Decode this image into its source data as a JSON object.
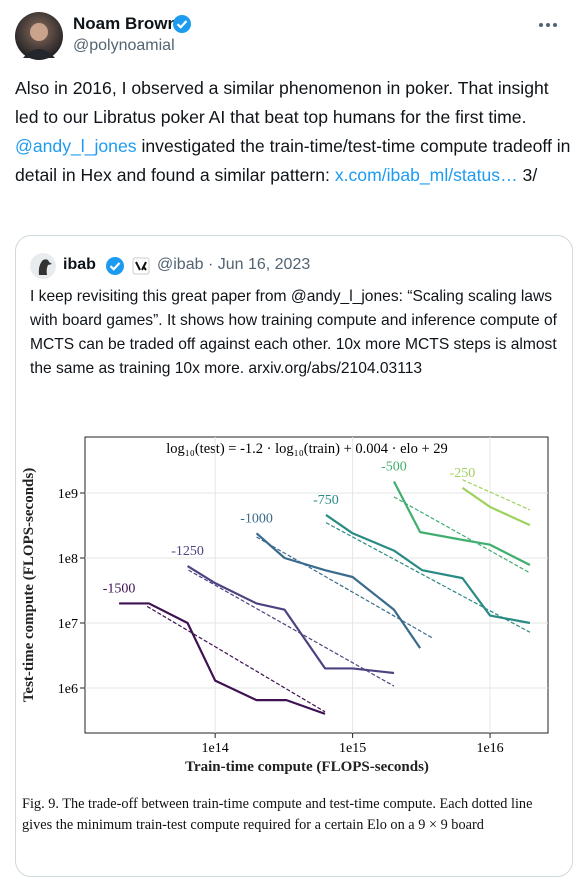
{
  "tweet": {
    "name": "Noam Brown",
    "handle": "@polynoamial",
    "text": [
      "Also in 2016, I observed a similar phenomenon in poker. That insight led to our Libratus poker AI that beat top humans for the first time. ",
      "@andy_l_jones",
      " investigated the train-time/test-time compute tradeoff in detail in Hex and found a similar pattern: ",
      "x.com/ibab_ml/status…",
      " 3/"
    ]
  },
  "quote": {
    "name": "ibab",
    "meta": "@ibab · Jun 16, 2023",
    "text": "I keep revisiting this great paper from @andy_l_jones: “Scaling scaling laws with board games”. It shows how training compute and inference compute of MCTS can be traded off against each other. 10x more MCTS steps is almost the same as training 10x more. arxiv.org/abs/2104.03113"
  },
  "chart_data": {
    "type": "line",
    "annotation": "log₁₀(test) = -1.2 · log₁₀(train) + 0.004 · elo + 29",
    "x_label": "Train-time compute (FLOPS-seconds)",
    "y_label": "Test-time compute (FLOPS-seconds)",
    "caption": "Fig. 9.  The trade-off between train-time compute and test-time compute. Each dotted line gives the minimum train-test compute required for a certain Elo on a 9 × 9 board",
    "log_scale": {
      "x": true,
      "y": true
    },
    "xlim": [
      11300000000000.0,
      2.64e+16
    ],
    "ylim": [
      203000.0,
      7270000000.0
    ],
    "xticks": [
      {
        "value": 100000000000000.0,
        "label": "1e14"
      },
      {
        "value": 1000000000000000.0,
        "label": "1e15"
      },
      {
        "value": 1e+16,
        "label": "1e16"
      }
    ],
    "yticks": [
      {
        "value": 1000000.0,
        "label": "1e6"
      },
      {
        "value": 10000000.0,
        "label": "1e7"
      },
      {
        "value": 100000000.0,
        "label": "1e8"
      },
      {
        "value": 1000000000.0,
        "label": "1e9"
      }
    ],
    "series": [
      {
        "name": "-1500",
        "color": "#3d1152",
        "x": [
          20000000000000.0,
          33000000000000.0,
          63000000000000.0,
          100000000000000.0,
          200000000000000.0,
          330000000000000.0,
          630000000000000.0
        ],
        "values": [
          20000000.0,
          20000000.0,
          10000000.0,
          1300000.0,
          650000.0,
          650000.0,
          400000.0
        ],
        "dashed": {
          "x": [
            32000000000000.0,
            630000000000000.0
          ],
          "values": [
            18000000.0,
            430000.0
          ]
        }
      },
      {
        "name": "-1250",
        "color": "#4c4480",
        "x": [
          63000000000000.0,
          100000000000000.0,
          200000000000000.0,
          320000000000000.0,
          630000000000000.0,
          1000000000000000.0,
          2000000000000000.0
        ],
        "values": [
          75000000.0,
          41000000.0,
          20000000.0,
          16000000.0,
          2000000.0,
          2000000.0,
          1700000.0
        ],
        "dashed": {
          "x": [
            64000000000000.0,
            2000000000000000.0
          ],
          "values": [
            65000000.0,
            1070000.0
          ]
        }
      },
      {
        "name": "-1000",
        "color": "#3a6a8c",
        "x": [
          200000000000000.0,
          320000000000000.0,
          630000000000000.0,
          1000000000000000.0,
          2000000000000000.0,
          3100000000000000.0
        ],
        "values": [
          240000000.0,
          100000000.0,
          65000000.0,
          51000000.0,
          16000000.0,
          4100000.0
        ],
        "dashed": {
          "x": [
            200000000000000.0,
            3800000000000000.0
          ],
          "values": [
            210000000.0,
            5900000.0
          ]
        }
      },
      {
        "name": "-750",
        "color": "#2a8a84",
        "x": [
          640000000000000.0,
          1000000000000000.0,
          2000000000000000.0,
          3200000000000000.0,
          6300000000000000.0,
          1e+16,
          1.95e+16
        ],
        "values": [
          460000000.0,
          240000000.0,
          130000000.0,
          65000000.0,
          49000000.0,
          13000000.0,
          10000000.0
        ],
        "dashed": {
          "x": [
            640000000000000.0,
            1.95e+16
          ],
          "values": [
            350000000.0,
            7200000.0
          ]
        }
      },
      {
        "name": "-500",
        "color": "#3fae6f",
        "x": [
          2000000000000000.0,
          3100000000000000.0,
          6300000000000000.0,
          1e+16,
          1.95e+16
        ],
        "values": [
          1500000000.0,
          250000000.0,
          190000000.0,
          160000000.0,
          78000000.0
        ],
        "dashed": {
          "x": [
            2000000000000000.0,
            1.95e+16
          ],
          "values": [
            870000000.0,
            59000000.0
          ]
        }
      },
      {
        "name": "-250",
        "color": "#9fd25d",
        "x": [
          6300000000000000.0,
          1e+16,
          1.95e+16
        ],
        "values": [
          1200000000.0,
          610000000.0,
          320000000.0
        ],
        "dashed": {
          "x": [
            6300000000000000.0,
            1.95e+16
          ],
          "values": [
            1600000000.0,
            550000000.0
          ]
        }
      }
    ]
  }
}
